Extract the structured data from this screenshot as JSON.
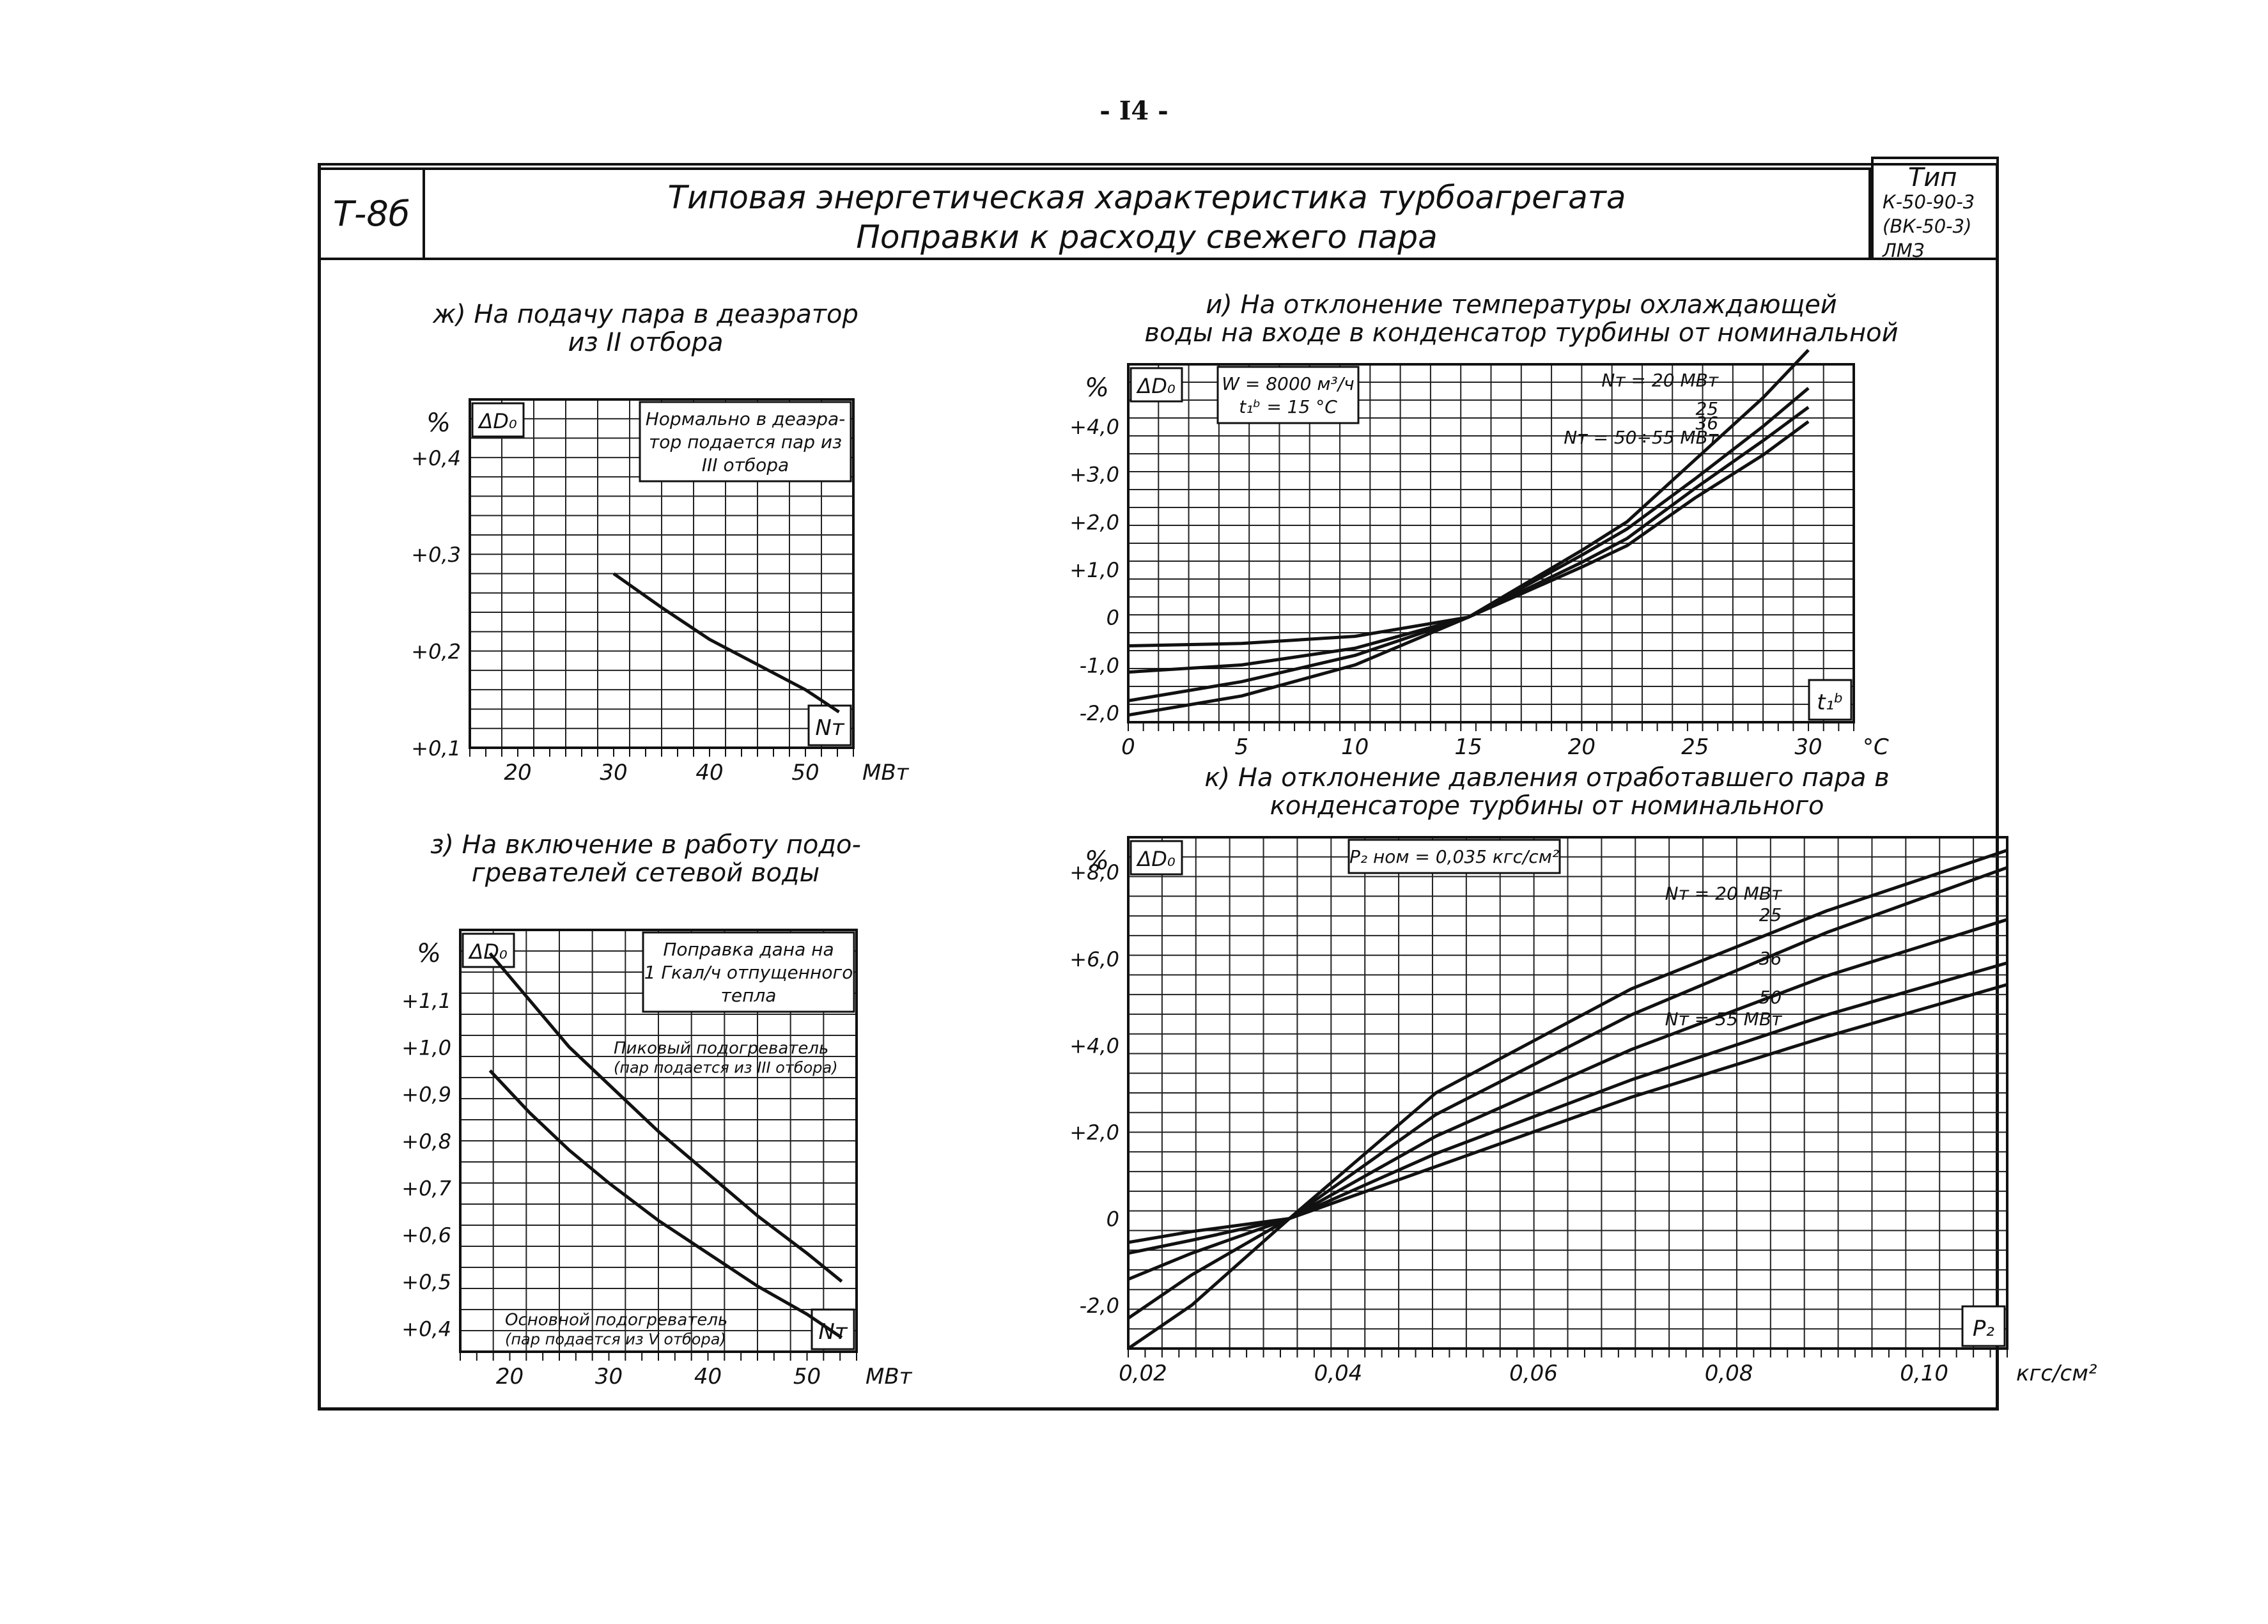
{
  "page_number": "- I4 -",
  "header": {
    "code": "Т-8б",
    "title_line1": "Типовая энергетическая характеристика турбоагрегата",
    "title_line2": "Поправки к расходу свежего пара",
    "type_lines": [
      "Тип",
      "К-50-90-3",
      "(ВК-50-3) ЛМЗ"
    ]
  },
  "panels": {
    "zh": {
      "title_line1": "ж) На подачу пара в деаэратор",
      "title_line2": "из II отбора"
    },
    "z": {
      "title_line1": "з) На включение в работу подо-",
      "title_line2": "гревателей сетевой воды"
    },
    "i": {
      "title_line1": "и) На отклонение температуры охлаждающей",
      "title_line2": "воды на входе в конденсатор турбины от номинальной"
    },
    "k": {
      "title_line1": "к) На отклонение давления отработавшего пара в",
      "title_line2": "конденсаторе турбины от номинального"
    }
  },
  "chart_data": [
    {
      "id": "zh",
      "type": "line",
      "ylabel_unit": "%",
      "ylabel": "ΔD₀",
      "xlabel": "Nт",
      "x_unit": "МВт",
      "xlim": [
        15,
        55
      ],
      "ylim": [
        0.1,
        0.46
      ],
      "xticks": [
        20,
        30,
        40,
        50
      ],
      "yticks": [
        0.1,
        0.2,
        0.3,
        0.4
      ],
      "ytick_labels": [
        "+0,1",
        "+0,2",
        "+0,3",
        "+0,4"
      ],
      "legend_box": [
        "Нормально в деаэра-",
        "тор подается пар из",
        "III отбора"
      ],
      "series": [
        {
          "x": [
            30,
            35,
            40,
            45,
            50,
            53.5
          ],
          "y": [
            0.28,
            0.245,
            0.212,
            0.186,
            0.16,
            0.137
          ]
        }
      ]
    },
    {
      "id": "z",
      "type": "line",
      "ylabel_unit": "%",
      "ylabel": "ΔD₀",
      "xlabel": "Nт",
      "x_unit": "МВт",
      "xlim": [
        15,
        55
      ],
      "ylim": [
        0.35,
        1.25
      ],
      "xticks": [
        20,
        30,
        40,
        50
      ],
      "yticks": [
        0.4,
        0.5,
        0.6,
        0.7,
        0.8,
        0.9,
        1.0,
        1.1
      ],
      "ytick_labels": [
        "+0,4",
        "+0,5",
        "+0,6",
        "+0,7",
        "+0,8",
        "+0,9",
        "+1,0",
        "+1,1"
      ],
      "legend_box": [
        "Поправка дана на",
        "1 Гкал/ч отпущенного",
        "тепла"
      ],
      "series": [
        {
          "name": "Пиковый подогреватель",
          "x": [
            18,
            22,
            26,
            30,
            35,
            40,
            45,
            50,
            53.5
          ],
          "y": [
            1.2,
            1.1,
            1.0,
            0.92,
            0.82,
            0.73,
            0.64,
            0.56,
            0.5
          ]
        },
        {
          "name": "Основной подогреватель",
          "x": [
            18,
            22,
            26,
            30,
            35,
            40,
            45,
            50,
            53.5
          ],
          "y": [
            0.95,
            0.86,
            0.78,
            0.71,
            0.63,
            0.56,
            0.49,
            0.43,
            0.38
          ]
        }
      ],
      "annotations": [
        [
          "Пиковый подогреватель",
          "(пар подается из III отбора)"
        ],
        [
          "Основной подогреватель",
          "(пар подается из V отбора)"
        ]
      ]
    },
    {
      "id": "i",
      "type": "line",
      "ylabel_unit": "%",
      "ylabel": "ΔD₀",
      "xlabel": "t₁ᵇ",
      "x_unit": "°C",
      "xlim": [
        0,
        32
      ],
      "ylim": [
        -2.2,
        5.3
      ],
      "xticks": [
        0,
        5,
        10,
        15,
        20,
        25,
        30
      ],
      "yticks": [
        -2,
        -1,
        0,
        1,
        2,
        3,
        4
      ],
      "ytick_labels": [
        "-2,0",
        "-1,0",
        "0",
        "+1,0",
        "+2,0",
        "+3,0",
        "+4,0"
      ],
      "legend_box": [
        "W = 8000 м³/ч",
        "t₁ᵇ = 15 °C"
      ],
      "series": [
        {
          "name": "Nт = 20 МВт",
          "x": [
            0,
            5,
            10,
            15,
            20,
            22,
            25,
            28,
            30
          ],
          "y": [
            -2.05,
            -1.65,
            -1.0,
            0,
            1.4,
            2.0,
            3.3,
            4.6,
            5.6
          ]
        },
        {
          "name": "25",
          "x": [
            0,
            5,
            10,
            15,
            20,
            22,
            25,
            28,
            30
          ],
          "y": [
            -1.75,
            -1.35,
            -0.8,
            0,
            1.3,
            1.85,
            2.9,
            4.0,
            4.8
          ]
        },
        {
          "name": "36",
          "x": [
            0,
            5,
            10,
            15,
            20,
            22,
            25,
            28,
            30
          ],
          "y": [
            -1.15,
            -1.0,
            -0.65,
            0,
            1.15,
            1.65,
            2.7,
            3.7,
            4.4
          ]
        },
        {
          "name": "Nт = 50÷55 МВт",
          "x": [
            0,
            5,
            10,
            15,
            20,
            22,
            25,
            28,
            30
          ],
          "y": [
            -0.6,
            -0.55,
            -0.4,
            0,
            1.05,
            1.5,
            2.5,
            3.4,
            4.1
          ]
        }
      ]
    },
    {
      "id": "k",
      "type": "line",
      "ylabel_unit": "%",
      "ylabel": "ΔD₀",
      "xlabel": "P₂",
      "x_unit": "кгс/см²",
      "xlim": [
        0.0185,
        0.1085
      ],
      "ylim": [
        -3,
        8.8
      ],
      "xticks": [
        0.02,
        0.04,
        0.06,
        0.08,
        0.1
      ],
      "xtick_labels": [
        "0,02",
        "0,04",
        "0,06",
        "0,08",
        "0,10"
      ],
      "yticks": [
        -2,
        0,
        2,
        4,
        6,
        8
      ],
      "ytick_labels": [
        "-2,0",
        "0",
        "+2,0",
        "+4,0",
        "+6,0",
        "+8,0"
      ],
      "legend_box": [
        "P₂ ном = 0,035 кгс/см²"
      ],
      "series": [
        {
          "name": "Nт = 20 МВт",
          "x": [
            0.0185,
            0.025,
            0.035,
            0.05,
            0.07,
            0.09,
            0.1085
          ],
          "y": [
            -3.0,
            -2.0,
            0,
            2.9,
            5.3,
            7.1,
            8.5
          ]
        },
        {
          "name": "25",
          "x": [
            0.0185,
            0.025,
            0.035,
            0.05,
            0.07,
            0.09,
            0.1085
          ],
          "y": [
            -2.3,
            -1.3,
            0,
            2.4,
            4.7,
            6.6,
            8.1
          ]
        },
        {
          "name": "36",
          "x": [
            0.0185,
            0.025,
            0.035,
            0.05,
            0.07,
            0.09,
            0.1085
          ],
          "y": [
            -1.4,
            -0.8,
            0,
            1.9,
            3.9,
            5.6,
            6.9
          ]
        },
        {
          "name": "50",
          "x": [
            0.0185,
            0.025,
            0.035,
            0.05,
            0.07,
            0.09,
            0.1085
          ],
          "y": [
            -0.8,
            -0.5,
            0,
            1.5,
            3.2,
            4.7,
            5.9
          ]
        },
        {
          "name": "Nт = 55 МВт",
          "x": [
            0.0185,
            0.025,
            0.035,
            0.05,
            0.07,
            0.09,
            0.1085
          ],
          "y": [
            -0.55,
            -0.3,
            0,
            1.2,
            2.8,
            4.2,
            5.4
          ]
        }
      ]
    }
  ]
}
